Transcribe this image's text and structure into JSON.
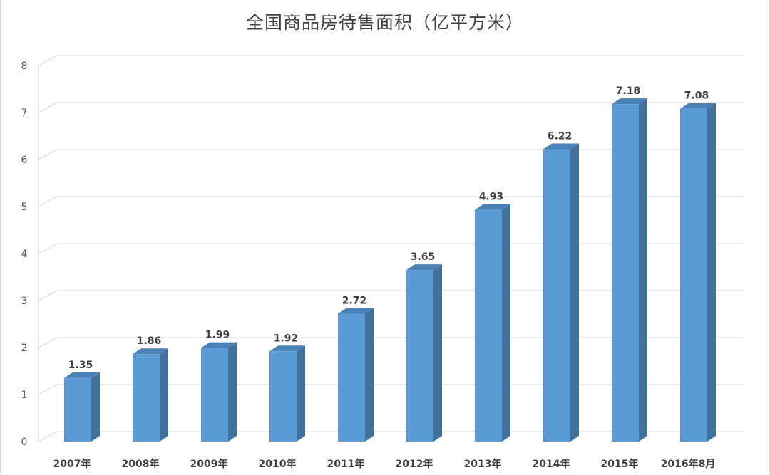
{
  "chart_data": {
    "type": "bar",
    "title": "全国商品房待售面积（亿平方米）",
    "categories": [
      "2007年",
      "2008年",
      "2009年",
      "2010年",
      "2011年",
      "2012年",
      "2013年",
      "2014年",
      "2015年",
      "2016年8月"
    ],
    "values": [
      1.35,
      1.86,
      1.99,
      1.92,
      2.72,
      3.65,
      4.93,
      6.22,
      7.18,
      7.08
    ],
    "ylim": [
      0,
      8
    ],
    "yticks": [
      0,
      1,
      2,
      3,
      4,
      5,
      6,
      7,
      8
    ],
    "grid": true,
    "legend": "none",
    "bar_color": "#5b9bd5",
    "bar_side_color": "#41719c",
    "bar_top_color": "#4a82b8"
  }
}
